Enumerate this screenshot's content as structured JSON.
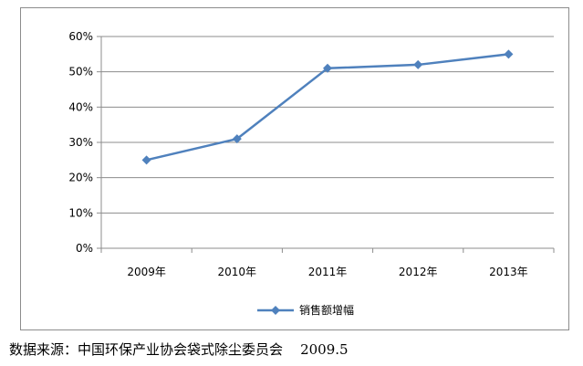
{
  "chart_data": {
    "type": "line",
    "categories": [
      "2009年",
      "2010年",
      "2011年",
      "2012年",
      "2013年"
    ],
    "series": [
      {
        "name": "销售额增幅",
        "values": [
          0.25,
          0.31,
          0.51,
          0.52,
          0.55
        ],
        "color": "#4f81bd"
      }
    ],
    "y_ticks": [
      "0%",
      "10%",
      "20%",
      "30%",
      "40%",
      "50%",
      "60%"
    ],
    "ylim": [
      0,
      0.6
    ],
    "grid": true,
    "legend_position": "bottom",
    "marker": "diamond"
  },
  "source_note": "数据来源：中国环保产业协会袋式除尘委员会    2009.5"
}
